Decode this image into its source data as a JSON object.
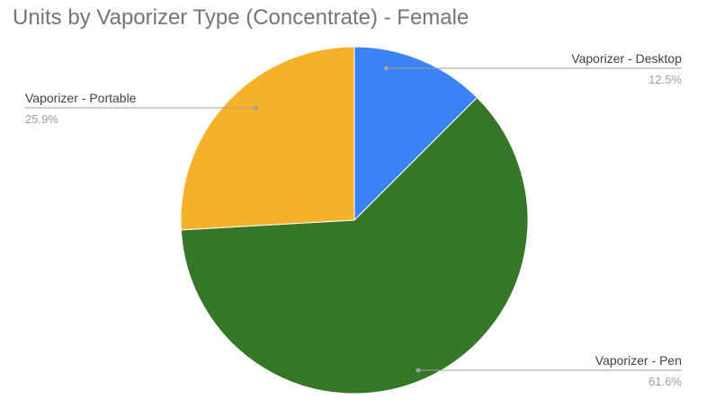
{
  "chart_data": {
    "type": "pie",
    "title": "Units by Vaporizer Type (Concentrate) - Female",
    "slices": [
      {
        "label": "Vaporizer - Desktop",
        "value": 12.5,
        "display": "12.5%",
        "color": "#3b82f6"
      },
      {
        "label": "Vaporizer - Pen",
        "value": 61.6,
        "display": "61.6%",
        "color": "#367627"
      },
      {
        "label": "Vaporizer - Portable",
        "value": 25.9,
        "display": "25.9%",
        "color": "#f6b12a"
      }
    ]
  }
}
